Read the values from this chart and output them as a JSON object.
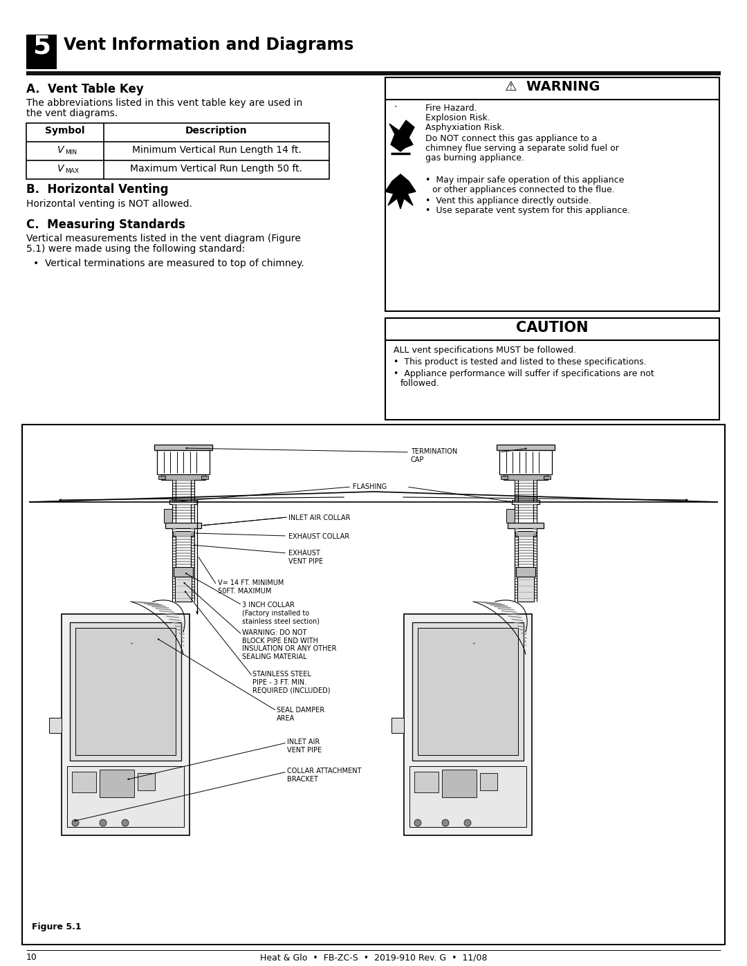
{
  "title_number": "5",
  "title_text": "Vent Information and Diagrams",
  "section_a_title": "A.  Vent Table Key",
  "section_a_body1": "The abbreviations listed in this vent table key are used in",
  "section_a_body2": "the vent diagrams.",
  "table_header_sym": "Symbol",
  "table_header_desc": "Description",
  "table_row1_sym": "V_MIN",
  "table_row1_desc": "Minimum Vertical Run Length 14 ft.",
  "table_row2_sym": "V_MAX",
  "table_row2_desc": "Maximum Vertical Run Length 50 ft.",
  "section_b_title": "B.  Horizontal Venting",
  "section_b_body": "Horizontal venting is NOT allowed.",
  "section_c_title": "C.  Measuring Standards",
  "section_c_body1": "Vertical measurements listed in the vent diagram (Figure",
  "section_c_body2": "5.1) were made using the following standard:",
  "section_c_bullet": "Vertical terminations are measured to top of chimney.",
  "warning_title": "WARNING",
  "warning_text1": "Fire Hazard.",
  "warning_text2": "Explosion Risk.",
  "warning_text3": "Asphyxiation Risk.",
  "warning_para_lines": [
    "Do NOT connect this gas appliance to a",
    "chimney flue serving a separate solid fuel or",
    "gas burning appliance."
  ],
  "warning_b1a": "May impair safe operation of this appliance",
  "warning_b1b": "or other appliances connected to the flue.",
  "warning_b2": "Vent this appliance directly outside.",
  "warning_b3": "Use separate vent system for this appliance.",
  "caution_title": "CAUTION",
  "caution_line1": "ALL vent specifications MUST be followed.",
  "caution_b1": "This product is tested and listed to these specifications.",
  "caution_b2a": "Appliance performance will suffer if specifications are not",
  "caution_b2b": "followed.",
  "figure_label": "Figure 5.1",
  "footer_page": "10",
  "footer_info": "Heat & Glo  •  FB-ZC-S  •  2019-910 Rev. G  •  11/08",
  "lbl_termination": "TERMINATION\nCAP",
  "lbl_flashing": "FLASHING",
  "lbl_inlet_collar": "INLET AIR COLLAR",
  "lbl_exhaust_collar": "EXHAUST COLLAR",
  "lbl_exhaust_pipe": "EXHAUST\nVENT PIPE",
  "lbl_v_dim": "V= 14 FT. MINIMUM\n50FT. MAXIMUM",
  "lbl_3inch": "3 INCH COLLAR\n(Factory installed to\nstainless steel section)",
  "lbl_warning_block": "WARNING: DO NOT\nBLOCK PIPE END WITH\nINSULATION OR ANY OTHER\nSEALING MATERIAL",
  "lbl_ss_pipe": "STAINLESS STEEL\nPIPE - 3 FT. MIN.\nREQUIRED (INCLUDED)",
  "lbl_seal": "SEAL DAMPER\nAREA",
  "lbl_inlet_pipe": "INLET AIR\nVENT PIPE",
  "lbl_collar_bracket": "COLLAR ATTACHMENT\nBRACKET",
  "page_bg": "#ffffff"
}
